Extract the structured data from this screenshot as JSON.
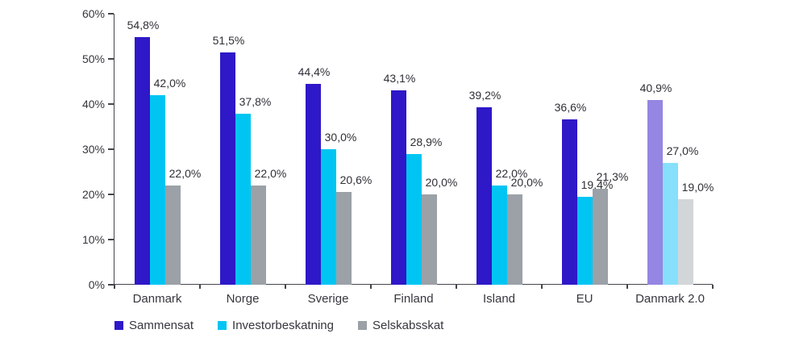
{
  "chart_data": {
    "type": "bar",
    "title": "",
    "xlabel": "",
    "ylabel": "",
    "grid": false,
    "legend_position": "bottom-left",
    "categories": [
      "Danmark",
      "Norge",
      "Sverige",
      "Finland",
      "Island",
      "EU",
      "Danmark 2.0"
    ],
    "series": [
      {
        "name": "Sammensat",
        "color": "#2e18c8",
        "faded_color": "#9486e2",
        "values": [
          54.8,
          51.5,
          44.4,
          43.1,
          39.2,
          36.6,
          40.9
        ],
        "labels": [
          "54,8%",
          "51,5%",
          "44,4%",
          "43,1%",
          "39,2%",
          "36,6%",
          "40,9%"
        ]
      },
      {
        "name": "Investorbeskatning",
        "color": "#00c5f2",
        "faded_color": "#87e0fb",
        "values": [
          42.0,
          37.8,
          30.0,
          28.9,
          22.0,
          19.4,
          27.0
        ],
        "labels": [
          "42,0%",
          "37,8%",
          "30,0%",
          "28,9%",
          "22,0%",
          "19,4%",
          "27,0%"
        ]
      },
      {
        "name": "Selskabsskat",
        "color": "#9ba1a7",
        "faded_color": "#d2d6d9",
        "values": [
          22.0,
          22.0,
          20.6,
          20.0,
          20.0,
          21.3,
          19.0
        ],
        "labels": [
          "22,0%",
          "22,0%",
          "20,6%",
          "20,0%",
          "20,0%",
          "21,3%",
          "19,0%"
        ]
      }
    ],
    "y_axis": {
      "ticks": [
        "60%",
        "50%",
        "40%",
        "30%",
        "20%",
        "10%",
        "0%"
      ],
      "ylim": [
        0,
        60
      ],
      "step": 10
    },
    "faded_category_index": 6,
    "text_color": "#36363e",
    "axis_color": "#45454d"
  }
}
